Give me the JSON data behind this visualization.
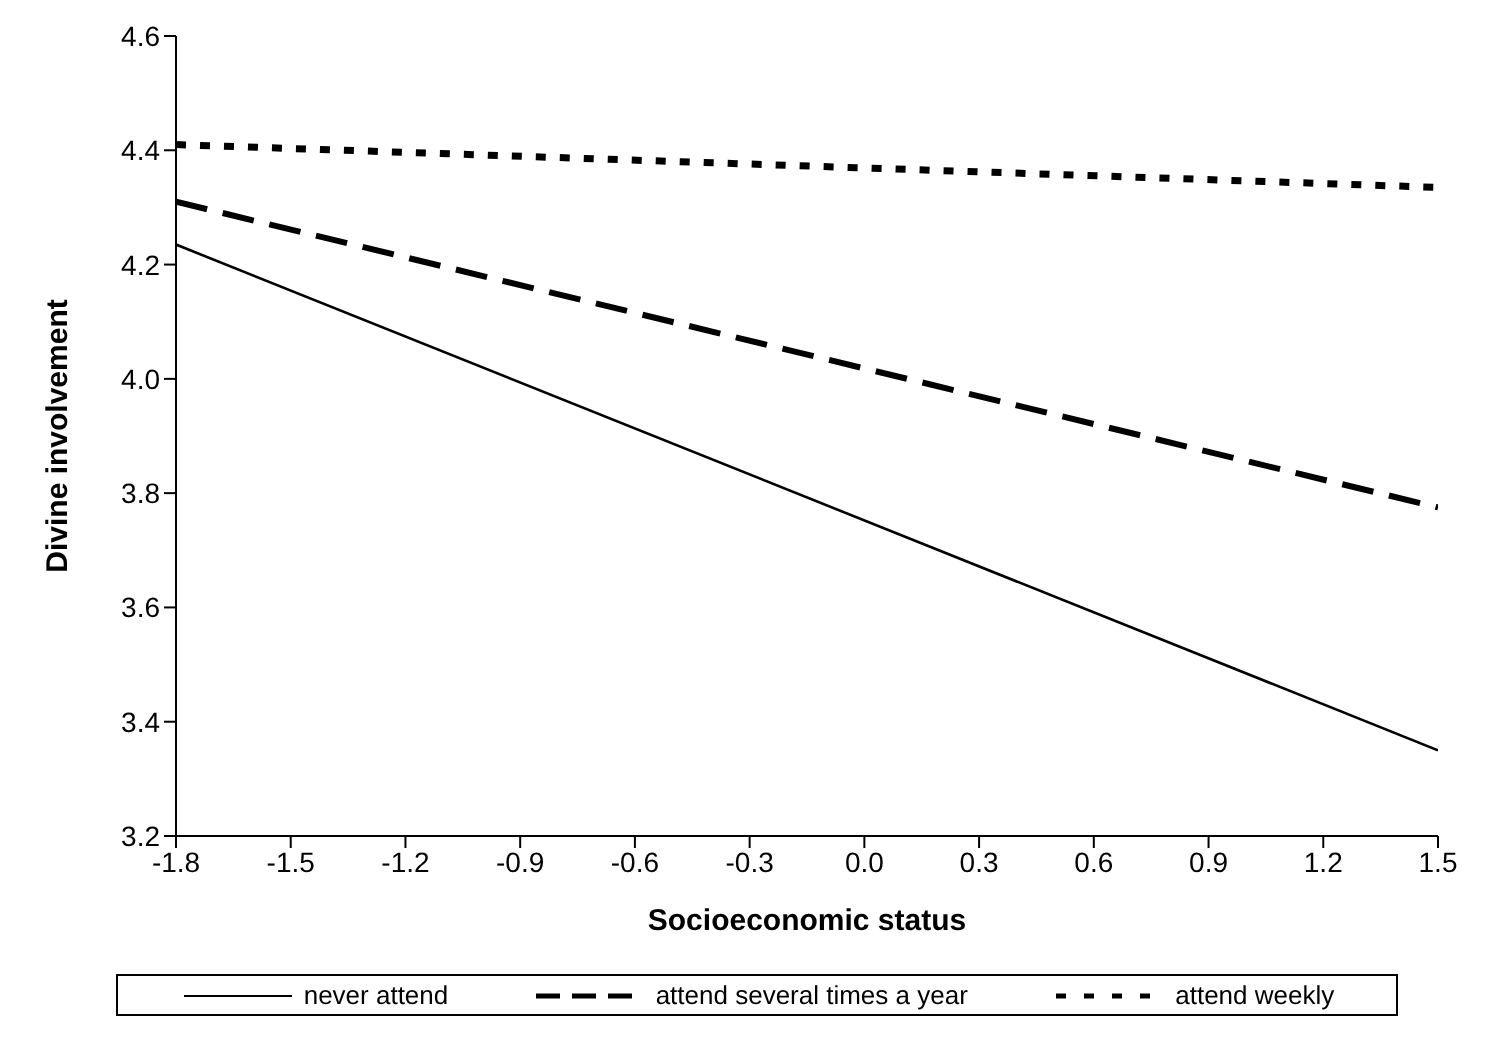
{
  "chart_data": {
    "type": "line",
    "xlabel": "Socioeconomic status",
    "ylabel": "Divine involvement",
    "x": [
      -1.8,
      1.5
    ],
    "series": [
      {
        "name": "never attend",
        "color": "#000000",
        "line_style": "solid",
        "values": [
          4.235,
          3.35
        ]
      },
      {
        "name": "attend several times a year",
        "color": "#000000",
        "line_style": "dashed",
        "values": [
          4.31,
          3.775
        ]
      },
      {
        "name": "attend weekly",
        "color": "#000000",
        "line_style": "dotted",
        "values": [
          4.41,
          4.335
        ]
      }
    ],
    "xlim": [
      -1.8,
      1.5
    ],
    "xticks": [
      -1.8,
      -1.5,
      -1.2,
      -0.9,
      -0.6,
      -0.3,
      {
        "value": 0,
        "label": "0.0"
      },
      0.3,
      0.6,
      0.9,
      1.2,
      1.5
    ],
    "ylim": [
      3.2,
      4.6
    ],
    "yticks": [
      3.2,
      3.4,
      3.6,
      3.8,
      {
        "value": 4,
        "label": "4.0"
      },
      4.2,
      4.4,
      4.6
    ],
    "grid": false,
    "legend": "bottom",
    "marker": "none"
  }
}
